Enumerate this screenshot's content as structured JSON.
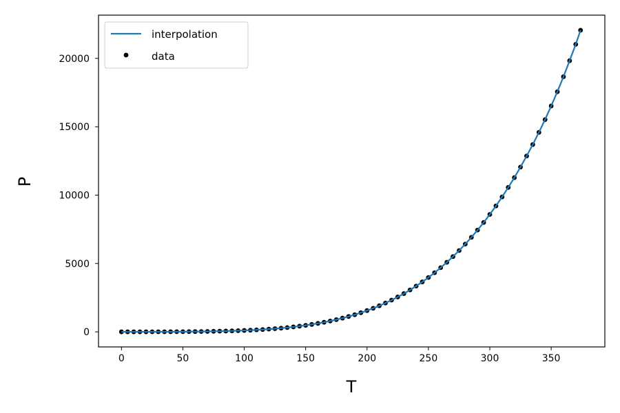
{
  "chart_data": {
    "type": "line",
    "xlabel": "T",
    "ylabel": "P",
    "xlim": [
      -18.7,
      393.7
    ],
    "ylim": [
      -1103,
      23163
    ],
    "xticks": [
      0,
      50,
      100,
      150,
      200,
      250,
      300,
      350
    ],
    "yticks": [
      0,
      5000,
      10000,
      15000,
      20000
    ],
    "grid": false,
    "legend_position": "upper-left",
    "series": [
      {
        "name": "interpolation",
        "kind": "line",
        "color": "#1f77b4",
        "x": [
          0,
          5,
          10,
          15,
          20,
          25,
          30,
          35,
          40,
          45,
          50,
          55,
          60,
          65,
          70,
          75,
          80,
          85,
          90,
          95,
          100,
          105,
          110,
          115,
          120,
          125,
          130,
          135,
          140,
          145,
          150,
          155,
          160,
          165,
          170,
          175,
          180,
          185,
          190,
          195,
          200,
          205,
          210,
          215,
          220,
          225,
          230,
          235,
          240,
          245,
          250,
          255,
          260,
          265,
          270,
          275,
          280,
          285,
          290,
          295,
          300,
          305,
          310,
          315,
          320,
          325,
          330,
          335,
          340,
          345,
          350,
          355,
          360,
          365,
          370,
          373.9
        ],
        "y": [
          0.6,
          0.9,
          1.2,
          1.7,
          2.3,
          3.2,
          4.2,
          5.6,
          7.4,
          9.6,
          12.3,
          15.8,
          19.9,
          25.0,
          31.2,
          38.6,
          47.4,
          57.8,
          70.1,
          84.6,
          101.4,
          120.9,
          143.3,
          169.1,
          198.5,
          232.1,
          270.1,
          313.0,
          361.4,
          415.7,
          476.2,
          543.4,
          618.0,
          700.6,
          791.6,
          891.8,
          1002,
          1122,
          1254,
          1398,
          1555,
          1724,
          1908,
          2106,
          2319,
          2549,
          2797,
          3062,
          3347,
          3651,
          3976,
          4322,
          4692,
          5085,
          5503,
          5946,
          6416,
          6915,
          7442,
          8000,
          8588,
          9209,
          9865,
          10560,
          11280,
          12050,
          12860,
          13700,
          14590,
          15520,
          16520,
          17560,
          18660,
          19830,
          21030,
          22060
        ]
      },
      {
        "name": "data",
        "kind": "scatter",
        "color": "#000000",
        "x": [
          0,
          5,
          10,
          15,
          20,
          25,
          30,
          35,
          40,
          45,
          50,
          55,
          60,
          65,
          70,
          75,
          80,
          85,
          90,
          95,
          100,
          105,
          110,
          115,
          120,
          125,
          130,
          135,
          140,
          145,
          150,
          155,
          160,
          165,
          170,
          175,
          180,
          185,
          190,
          195,
          200,
          205,
          210,
          215,
          220,
          225,
          230,
          235,
          240,
          245,
          250,
          255,
          260,
          265,
          270,
          275,
          280,
          285,
          290,
          295,
          300,
          305,
          310,
          315,
          320,
          325,
          330,
          335,
          340,
          345,
          350,
          355,
          360,
          365,
          370,
          373.9
        ],
        "y": [
          0.6,
          0.9,
          1.2,
          1.7,
          2.3,
          3.2,
          4.2,
          5.6,
          7.4,
          9.6,
          12.3,
          15.8,
          19.9,
          25.0,
          31.2,
          38.6,
          47.4,
          57.8,
          70.1,
          84.6,
          101.4,
          120.9,
          143.3,
          169.1,
          198.5,
          232.1,
          270.1,
          313.0,
          361.4,
          415.7,
          476.2,
          543.4,
          618.0,
          700.6,
          791.6,
          891.8,
          1002,
          1122,
          1254,
          1398,
          1555,
          1724,
          1908,
          2106,
          2319,
          2549,
          2797,
          3062,
          3347,
          3651,
          3976,
          4322,
          4692,
          5085,
          5503,
          5946,
          6416,
          6915,
          7442,
          8000,
          8588,
          9209,
          9865,
          10560,
          11280,
          12050,
          12860,
          13700,
          14590,
          15520,
          16520,
          17560,
          18660,
          19830,
          21030,
          22060
        ]
      }
    ]
  }
}
